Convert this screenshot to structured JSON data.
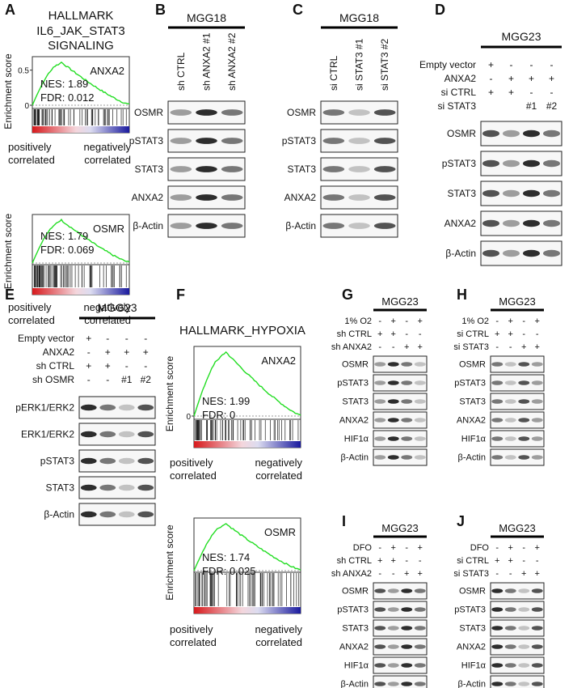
{
  "A": {
    "letter": "A",
    "title": [
      "HALLMARK",
      "IL6_JAK_STAT3",
      "SIGNALING"
    ],
    "y_label": "Enrichment score",
    "positive": [
      "positively",
      "correlated"
    ],
    "negative": [
      "negatively",
      "correlated"
    ],
    "plots": [
      {
        "gene": "ANXA2",
        "nes": "NES: 1.89",
        "fdr": "FDR: 0.012",
        "yticks": [
          0.5,
          0
        ]
      },
      {
        "gene": "OSMR",
        "nes": "NES: 1.79",
        "fdr": "FDR: 0.069"
      }
    ]
  },
  "B": {
    "letter": "B",
    "cell_line": "MGG18",
    "lanes": [
      "sh CTRL",
      "sh ANXA2 #1",
      "sh ANXA2 #2"
    ],
    "blots": [
      "OSMR",
      "pSTAT3",
      "STAT3",
      "ANXA2",
      "β-Actin"
    ]
  },
  "C": {
    "letter": "C",
    "cell_line": "MGG18",
    "lanes": [
      "si CTRL",
      "si STAT3 #1",
      "si STAT3 #2"
    ],
    "blots": [
      "OSMR",
      "pSTAT3",
      "STAT3",
      "ANXA2",
      "β-Actin"
    ]
  },
  "D": {
    "letter": "D",
    "cell_line": "MGG23",
    "conditions": [
      {
        "label": "Empty vector",
        "marks": [
          "+",
          "-",
          "-",
          "-"
        ]
      },
      {
        "label": "ANXA2",
        "marks": [
          "-",
          "+",
          "+",
          "+"
        ]
      },
      {
        "label": "si CTRL",
        "marks": [
          "+",
          "+",
          "-",
          "-"
        ]
      },
      {
        "label": "si STAT3",
        "marks": [
          null,
          null,
          "#1",
          "#2"
        ]
      }
    ],
    "blots": [
      "OSMR",
      "pSTAT3",
      "STAT3",
      "ANXA2",
      "β-Actin"
    ]
  },
  "E": {
    "letter": "E",
    "cell_line": "MGG23",
    "conditions": [
      {
        "label": "Empty vector",
        "marks": [
          "+",
          "-",
          "-",
          "-"
        ]
      },
      {
        "label": "ANXA2",
        "marks": [
          "-",
          "+",
          "+",
          "+"
        ]
      },
      {
        "label": "sh CTRL",
        "marks": [
          "+",
          "+",
          "-",
          "-"
        ]
      },
      {
        "label": "sh OSMR",
        "marks": [
          "-",
          "-",
          "#1",
          "#2"
        ]
      }
    ],
    "blots": [
      "pERK1/ERK2",
      "ERK1/ERK2",
      "pSTAT3",
      "STAT3",
      "β-Actin"
    ]
  },
  "F": {
    "letter": "F",
    "title": [
      "HALLMARK_HYPOXIA"
    ],
    "y_label": "Enrichment score",
    "positive": [
      "positively",
      "correlated"
    ],
    "negative": [
      "negatively",
      "correlated"
    ],
    "plots": [
      {
        "gene": "ANXA2",
        "nes": "NES: 1.99",
        "fdr": "FDR: 0",
        "yticks": [
          0
        ]
      },
      {
        "gene": "OSMR",
        "nes": "NES: 1.74",
        "fdr": "FDR: 0.025"
      }
    ]
  },
  "G": {
    "letter": "G",
    "cell_line": "MGG23",
    "conditions": [
      {
        "label": "1% O2",
        "marks": [
          "-",
          "+",
          "-",
          "+"
        ]
      },
      {
        "label": "sh CTRL",
        "marks": [
          "+",
          "+",
          "-",
          "-"
        ]
      },
      {
        "label": "sh ANXA2",
        "marks": [
          "-",
          "-",
          "+",
          "+"
        ]
      }
    ],
    "blots": [
      "OSMR",
      "pSTAT3",
      "STAT3",
      "ANXA2",
      "HIF1α",
      "β-Actin"
    ]
  },
  "H": {
    "letter": "H",
    "cell_line": "MGG23",
    "conditions": [
      {
        "label": "1% O2",
        "marks": [
          "-",
          "+",
          "-",
          "+"
        ]
      },
      {
        "label": "si CTRL",
        "marks": [
          "+",
          "+",
          "-",
          "-"
        ]
      },
      {
        "label": "si STAT3",
        "marks": [
          "-",
          "-",
          "+",
          "+"
        ]
      }
    ],
    "blots": [
      "OSMR",
      "pSTAT3",
      "STAT3",
      "ANXA2",
      "HIF1α",
      "β-Actin"
    ]
  },
  "I": {
    "letter": "I",
    "cell_line": "MGG23",
    "conditions": [
      {
        "label": "DFO",
        "marks": [
          "-",
          "+",
          "-",
          "+"
        ]
      },
      {
        "label": "sh CTRL",
        "marks": [
          "+",
          "+",
          "-",
          "-"
        ]
      },
      {
        "label": "sh ANXA2",
        "marks": [
          "-",
          "-",
          "+",
          "+"
        ]
      }
    ],
    "blots": [
      "OSMR",
      "pSTAT3",
      "STAT3",
      "ANXA2",
      "HIF1α",
      "β-Actin"
    ]
  },
  "J": {
    "letter": "J",
    "cell_line": "MGG23",
    "conditions": [
      {
        "label": "DFO",
        "marks": [
          "-",
          "+",
          "-",
          "+"
        ]
      },
      {
        "label": "si CTRL",
        "marks": [
          "+",
          "+",
          "-",
          "-"
        ]
      },
      {
        "label": "si STAT3",
        "marks": [
          "-",
          "-",
          "+",
          "+"
        ]
      }
    ],
    "blots": [
      "OSMR",
      "pSTAT3",
      "STAT3",
      "ANXA2",
      "HIF1α",
      "β-Actin"
    ]
  }
}
